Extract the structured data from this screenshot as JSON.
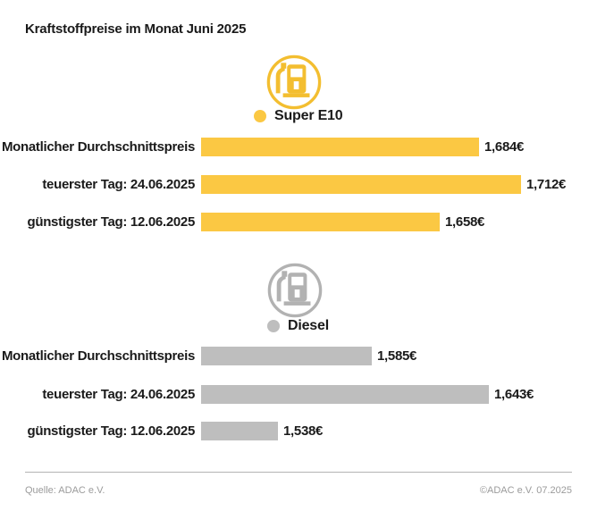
{
  "title": "Kraftstoffpreise im Monat Juni 2025",
  "colors": {
    "super_yellow": "#FBC843",
    "super_icon_yellow": "#F3BE30",
    "diesel_gray": "#BEBEBE",
    "diesel_icon_gray": "#B2B2B2",
    "text_dark": "#1a1a1a",
    "footer_gray": "#9b9b9b"
  },
  "footer": {
    "source": "Quelle: ADAC e.V.",
    "copyright": "©ADAC e.V. 07.2025"
  },
  "chart_data": {
    "type": "bar",
    "orientation": "horizontal",
    "title": "Kraftstoffpreise im Monat Juni 2025",
    "categories": [
      "Monatlicher Durchschnittspreis",
      "teuerster Tag: 24.06.2025",
      "günstigster Tag: 12.06.2025"
    ],
    "series": [
      {
        "name": "Super E10",
        "color": "#FBC843",
        "values": [
          1.684,
          1.712,
          1.658
        ],
        "labels": [
          "1,684€",
          "1,712€",
          "1,658€"
        ]
      },
      {
        "name": "Diesel",
        "color": "#BEBEBE",
        "values": [
          1.585,
          1.643,
          1.538
        ],
        "labels": [
          "1,585€",
          "1,643€",
          "1,538€"
        ]
      }
    ],
    "value_axis_baseline": 1.5,
    "grid": false,
    "legend_position": "above-each-group"
  }
}
